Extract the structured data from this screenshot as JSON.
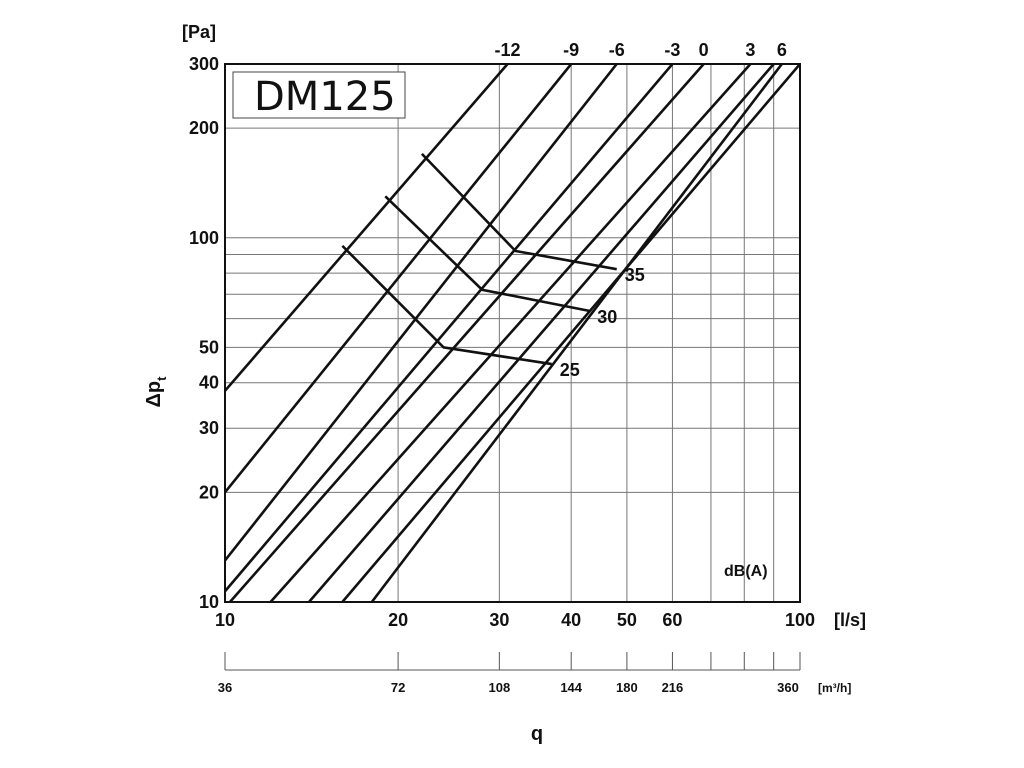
{
  "chart_data": {
    "type": "line",
    "title": "DM125",
    "x_scale": "log",
    "y_scale": "log",
    "xlim": [
      10,
      100
    ],
    "ylim": [
      10,
      300
    ],
    "grid": true,
    "xlabel": "q",
    "ylabel": "Δp",
    "ylabel_sub": "t",
    "x_unit": "[l/s]",
    "y_unit": "[Pa]",
    "secondary_x_unit": "[m³/h]",
    "sound_unit": "dB(A)",
    "x_tick_labels": [
      "10",
      "20",
      "30",
      "40",
      "50",
      "60",
      "100"
    ],
    "x_tick_values": [
      10,
      20,
      30,
      40,
      50,
      60,
      100
    ],
    "x_grid_values": [
      10,
      20,
      30,
      40,
      50,
      60,
      70,
      80,
      90,
      100
    ],
    "y_tick_labels": [
      "10",
      "20",
      "30",
      "40",
      "50",
      "100",
      "200",
      "300"
    ],
    "y_tick_values": [
      10,
      20,
      30,
      40,
      50,
      100,
      200,
      300
    ],
    "y_grid_values": [
      10,
      20,
      30,
      40,
      50,
      60,
      70,
      80,
      90,
      100,
      200,
      300
    ],
    "secondary_x_ticks": [
      {
        "label": "36",
        "q": 10
      },
      {
        "label": "72",
        "q": 20
      },
      {
        "label": "108",
        "q": 30
      },
      {
        "label": "144",
        "q": 40
      },
      {
        "label": "180",
        "q": 50
      },
      {
        "label": "216",
        "q": 60
      },
      {
        "label": "",
        "q": 70
      },
      {
        "label": "",
        "q": 80
      },
      {
        "label": "",
        "q": 90
      },
      {
        "label": "360",
        "q": 100
      }
    ],
    "series": [
      {
        "name": "-12",
        "points": [
          [
            10,
            38
          ],
          [
            31,
            300
          ]
        ]
      },
      {
        "name": "-9",
        "points": [
          [
            10,
            20
          ],
          [
            40,
            300
          ]
        ]
      },
      {
        "name": "-6",
        "points": [
          [
            10,
            13
          ],
          [
            48,
            300
          ]
        ]
      },
      {
        "name": "-3",
        "points": [
          [
            10,
            10.7
          ],
          [
            60,
            300
          ]
        ]
      },
      {
        "name": "0",
        "points": [
          [
            10.2,
            10
          ],
          [
            68,
            300
          ]
        ]
      },
      {
        "name": "3",
        "points": [
          [
            12,
            10
          ],
          [
            82,
            300
          ]
        ]
      },
      {
        "name": "6",
        "points": [
          [
            18,
            10
          ],
          [
            93,
            300
          ]
        ]
      },
      {
        "name": "",
        "points": [
          [
            14,
            10
          ],
          [
            90,
            300
          ]
        ]
      },
      {
        "name": "",
        "points": [
          [
            16,
            10
          ],
          [
            100,
            300
          ]
        ]
      }
    ],
    "damper_lines": [
      {
        "label": "35",
        "points": [
          [
            22,
            170
          ],
          [
            32,
            92
          ],
          [
            48,
            82
          ]
        ]
      },
      {
        "label": "30",
        "points": [
          [
            19,
            130
          ],
          [
            28,
            72
          ],
          [
            43,
            63
          ]
        ]
      },
      {
        "label": "25",
        "points": [
          [
            16,
            95
          ],
          [
            24,
            50
          ],
          [
            37,
            45
          ]
        ]
      }
    ]
  }
}
